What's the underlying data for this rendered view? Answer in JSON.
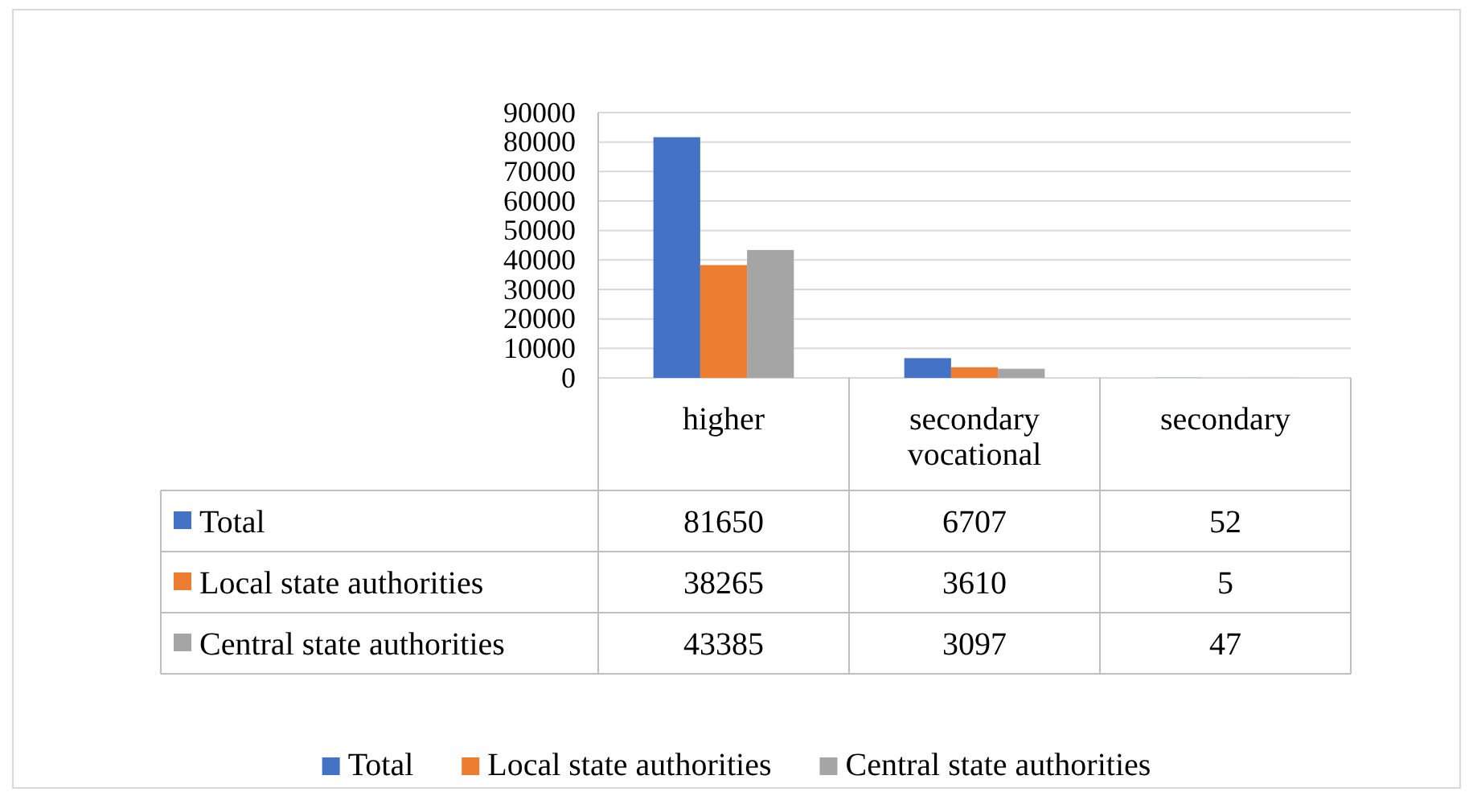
{
  "chart_data": {
    "type": "bar",
    "categories": [
      "higher",
      "secondary vocational",
      "secondary"
    ],
    "series": [
      {
        "name": "Total",
        "color": "#4472c4",
        "values": [
          81650,
          6707,
          52
        ]
      },
      {
        "name": "Local state authorities",
        "color": "#ed7d31",
        "values": [
          38265,
          3610,
          5
        ]
      },
      {
        "name": "Central state authorities",
        "color": "#a5a5a5",
        "values": [
          43385,
          3097,
          47
        ]
      }
    ],
    "ylim": [
      0,
      90000
    ],
    "yticks": [
      0,
      10000,
      20000,
      30000,
      40000,
      50000,
      60000,
      70000,
      80000,
      90000
    ],
    "grid": "y",
    "legend": "bottom",
    "data_labels": true
  }
}
